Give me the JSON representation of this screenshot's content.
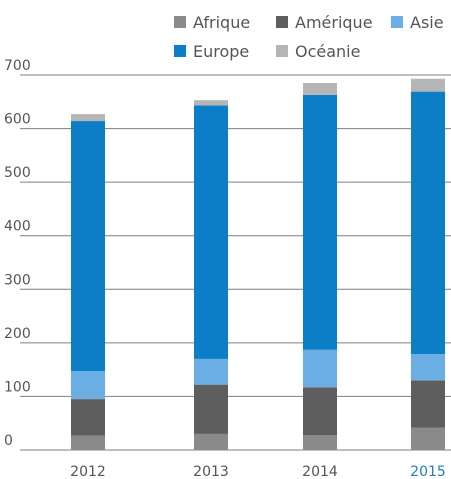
{
  "chart_data": {
    "type": "bar",
    "stacked": true,
    "categories": [
      "2012",
      "2013",
      "2014",
      "2015"
    ],
    "highlight_category": "2015",
    "highlight_color": "#1f7fc4",
    "series": [
      {
        "name": "Afrique",
        "color": "#8a8a8a",
        "values": [
          27,
          30,
          28,
          42
        ]
      },
      {
        "name": "Amérique",
        "color": "#5e5e5e",
        "values": [
          68,
          92,
          89,
          88
        ]
      },
      {
        "name": "Asie",
        "color": "#6aaee3",
        "values": [
          52,
          48,
          70,
          49
        ]
      },
      {
        "name": "Europe",
        "color": "#0c7dc7",
        "values": [
          467,
          473,
          476,
          490
        ]
      },
      {
        "name": "Océanie",
        "color": "#b5b5b5",
        "values": [
          13,
          10,
          22,
          24
        ]
      }
    ],
    "legend_rows": [
      [
        "Afrique",
        "Amérique",
        "Asie"
      ],
      [
        "Europe",
        "Océanie"
      ]
    ],
    "legend_position": "top-right",
    "yticks": [
      "700",
      "600",
      "500",
      "400",
      "300",
      "200",
      "100",
      "0"
    ],
    "ylim": [
      0,
      700
    ],
    "grid": true,
    "grid_color": "#7f7f7f",
    "text_color": "#555555"
  }
}
